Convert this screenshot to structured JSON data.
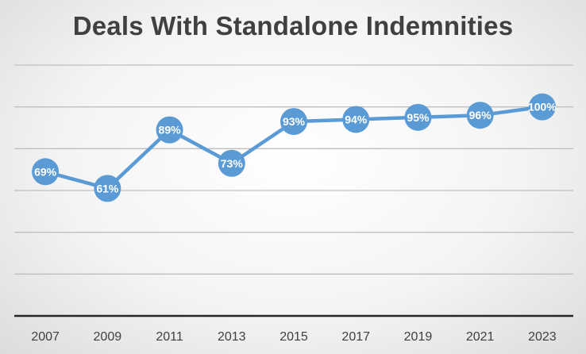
{
  "chart_data": {
    "type": "line",
    "title": "Deals With Standalone Indemnities",
    "xlabel": "",
    "ylabel": "",
    "categories": [
      "2007",
      "2009",
      "2011",
      "2013",
      "2015",
      "2017",
      "2019",
      "2021",
      "2023"
    ],
    "series": [
      {
        "values": [
          69,
          61,
          89,
          73,
          93,
          94,
          95,
          96,
          100
        ],
        "data_labels": [
          "69%",
          "61%",
          "89%",
          "73%",
          "93%",
          "94%",
          "95%",
          "96%",
          "100%"
        ]
      }
    ],
    "ylim": [
      0,
      120
    ],
    "y_ticks_shown": false,
    "grid": true,
    "legend": "none",
    "colors": {
      "series": "#5b9bd5",
      "label_text": "#ffffff",
      "title_text": "#404040",
      "grid": "#bfbfbf",
      "axis": "#262626"
    }
  }
}
